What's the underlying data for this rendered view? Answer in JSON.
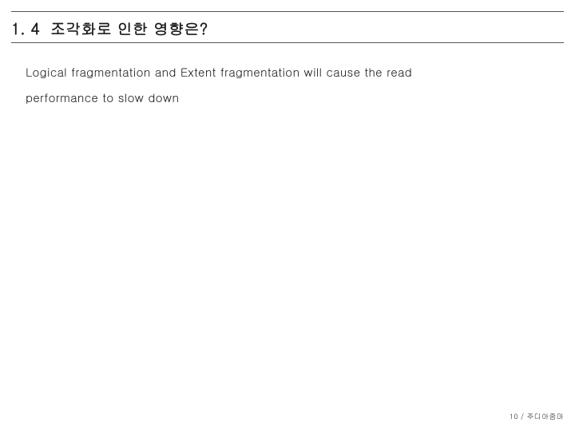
{
  "slide": {
    "section_number": "1. 4",
    "section_title": "조각화로 인한 영향은?",
    "body_line1": "Logical fragmentation and Extent fragmentation will cause the read",
    "body_line2": "performance to slow down"
  },
  "footer": {
    "page": "10",
    "separator": " / ",
    "author": "주디아줌마"
  },
  "style": {
    "background_color": "#ffffff",
    "rule_color": "#555555",
    "text_color": "#1a1a1a",
    "heading_fontsize": 19,
    "body_fontsize": 15,
    "footer_fontsize": 9
  }
}
